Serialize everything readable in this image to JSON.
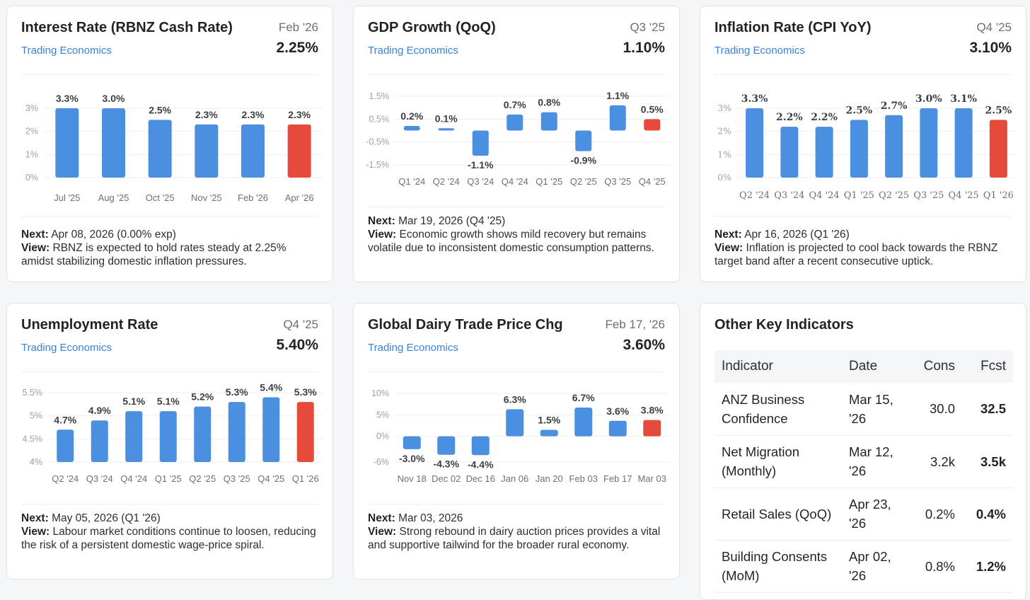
{
  "cards": [
    {
      "title": "Interest Rate (RBNZ Cash Rate)",
      "period": "Feb '26",
      "source": "Trading Economics",
      "value": "2.25%",
      "next_label": "Next:",
      "next": "Apr 08, 2026 (0.00% exp)",
      "view_label": "View:",
      "view": "RBNZ is expected to hold rates steady at 2.25% amidst stabilizing domestic inflation pressures."
    },
    {
      "title": "GDP Growth (QoQ)",
      "period": "Q3 '25",
      "source": "Trading Economics",
      "value": "1.10%",
      "next_label": "Next:",
      "next": "Mar 19, 2026 (Q4 '25)",
      "view_label": "View:",
      "view": "Economic growth shows mild recovery but remains volatile due to inconsistent domestic consumption patterns."
    },
    {
      "title": "Inflation Rate (CPI YoY)",
      "period": "Q4 '25",
      "source": "Trading Economics",
      "value": "3.10%",
      "next_label": "Next:",
      "next": "Apr 16, 2026 (Q1 '26)",
      "view_label": "View:",
      "view": "Inflation is projected to cool back towards the RBNZ target band after a recent consecutive uptick."
    },
    {
      "title": "Unemployment Rate",
      "period": "Q4 '25",
      "source": "Trading Economics",
      "value": "5.40%",
      "next_label": "Next:",
      "next": "May 05, 2026 (Q1 '26)",
      "view_label": "View:",
      "view": "Labour market conditions continue to loosen, reducing the risk of a persistent domestic wage-price spiral."
    },
    {
      "title": "Global Dairy Trade Price Chg",
      "period": "Feb 17, '26",
      "source": "Trading Economics",
      "value": "3.60%",
      "next_label": "Next:",
      "next": "Mar 03, 2026",
      "view_label": "View:",
      "view": "Strong rebound in dairy auction prices provides a vital and supportive tailwind for the broader rural economy."
    }
  ],
  "other": {
    "title": "Other Key Indicators",
    "columns": [
      "Indicator",
      "Date",
      "Cons",
      "Fcst"
    ],
    "rows": [
      {
        "indicator": "ANZ Business Confidence",
        "date": "Mar 15, '26",
        "cons": "30.0",
        "fcst": "32.5"
      },
      {
        "indicator": "Net Migration (Monthly)",
        "date": "Mar 12, '26",
        "cons": "3.2k",
        "fcst": "3.5k"
      },
      {
        "indicator": "Retail Sales (QoQ)",
        "date": "Apr 23, '26",
        "cons": "0.2%",
        "fcst": "0.4%"
      },
      {
        "indicator": "Building Consents (MoM)",
        "date": "Apr 02, '26",
        "cons": "0.8%",
        "fcst": "1.2%"
      }
    ]
  },
  "colors": {
    "bar": "#4a8fe0",
    "forecast": "#e64a3b",
    "grid": "#eceef1",
    "axis_text": "#9aa0a7"
  },
  "chart_data": [
    {
      "type": "bar",
      "title": "Interest Rate (RBNZ Cash Rate)",
      "categories": [
        "Jul '25",
        "Aug '25",
        "Oct '25",
        "Nov '25",
        "Feb '26",
        "Apr '26"
      ],
      "values": [
        3.3,
        3.0,
        2.5,
        2.3,
        2.3,
        2.3
      ],
      "labels": [
        "3.3%",
        "3.0%",
        "2.5%",
        "2.3%",
        "2.3%",
        "2.3%"
      ],
      "highlight_last": true,
      "ylim": [
        0,
        3
      ],
      "yticks": [
        0,
        1,
        2,
        3
      ],
      "ytick_labels": [
        "0%",
        "1%",
        "2%",
        "3%"
      ]
    },
    {
      "type": "bar",
      "title": "GDP Growth (QoQ)",
      "categories": [
        "Q1 '24",
        "Q2 '24",
        "Q3 '24",
        "Q4 '24",
        "Q1 '25",
        "Q2 '25",
        "Q3 '25",
        "Q4 '25"
      ],
      "values": [
        0.2,
        0.1,
        -1.1,
        0.7,
        0.8,
        -0.9,
        1.1,
        0.5
      ],
      "labels": [
        "0.2%",
        "0.1%",
        "-1.1%",
        "0.7%",
        "0.8%",
        "-0.9%",
        "1.1%",
        "0.5%"
      ],
      "highlight_last": true,
      "ylim": [
        -1.5,
        1.5
      ],
      "yticks": [
        1.5,
        0.5,
        -0.5,
        -1.5
      ],
      "ytick_labels": [
        "1.5%",
        "0.5%",
        "-0.5%",
        "-1.5%"
      ]
    },
    {
      "type": "bar",
      "title": "Inflation Rate (CPI YoY)",
      "categories": [
        "Q2 '24",
        "Q3 '24",
        "Q4 '24",
        "Q1 '25",
        "Q2 '25",
        "Q3 '25",
        "Q4 '25",
        "Q1 '26"
      ],
      "values": [
        3.3,
        2.2,
        2.2,
        2.5,
        2.7,
        3.0,
        3.1,
        2.5
      ],
      "labels": [
        "3.3%",
        "2.2%",
        "2.2%",
        "2.5%",
        "2.7%",
        "3.0%",
        "3.1%",
        "2.5%"
      ],
      "highlight_last": true,
      "ylim": [
        0,
        3
      ],
      "yticks": [
        0,
        1,
        2,
        3
      ],
      "ytick_labels": [
        "0%",
        "1%",
        "2%",
        "3%"
      ]
    },
    {
      "type": "bar",
      "title": "Unemployment Rate",
      "categories": [
        "Q2 '24",
        "Q3 '24",
        "Q4 '24",
        "Q1 '25",
        "Q2 '25",
        "Q3 '25",
        "Q4 '25",
        "Q1 '26"
      ],
      "values": [
        4.7,
        4.9,
        5.1,
        5.1,
        5.2,
        5.3,
        5.4,
        5.3
      ],
      "labels": [
        "4.7%",
        "4.9%",
        "5.1%",
        "5.1%",
        "5.2%",
        "5.3%",
        "5.4%",
        "5.3%"
      ],
      "highlight_last": true,
      "ylim": [
        4,
        5.5
      ],
      "yticks": [
        4,
        4.5,
        5,
        5.5
      ],
      "ytick_labels": [
        "4%",
        "4.5%",
        "5%",
        "5.5%"
      ]
    },
    {
      "type": "bar",
      "title": "Global Dairy Trade Price Chg",
      "categories": [
        "Nov 18",
        "Dec 02",
        "Dec 16",
        "Jan 06",
        "Jan 20",
        "Feb 03",
        "Feb 17",
        "Mar 03"
      ],
      "values": [
        -3.0,
        -4.3,
        -4.4,
        6.3,
        1.5,
        6.7,
        3.6,
        3.8
      ],
      "labels": [
        "-3.0%",
        "-4.3%",
        "-4.4%",
        "6.3%",
        "1.5%",
        "6.7%",
        "3.6%",
        "3.8%"
      ],
      "highlight_last": true,
      "ylim": [
        -6,
        10
      ],
      "yticks": [
        10,
        5,
        0,
        -6
      ],
      "ytick_labels": [
        "10%",
        "5%",
        "0%",
        "-6%"
      ]
    }
  ]
}
